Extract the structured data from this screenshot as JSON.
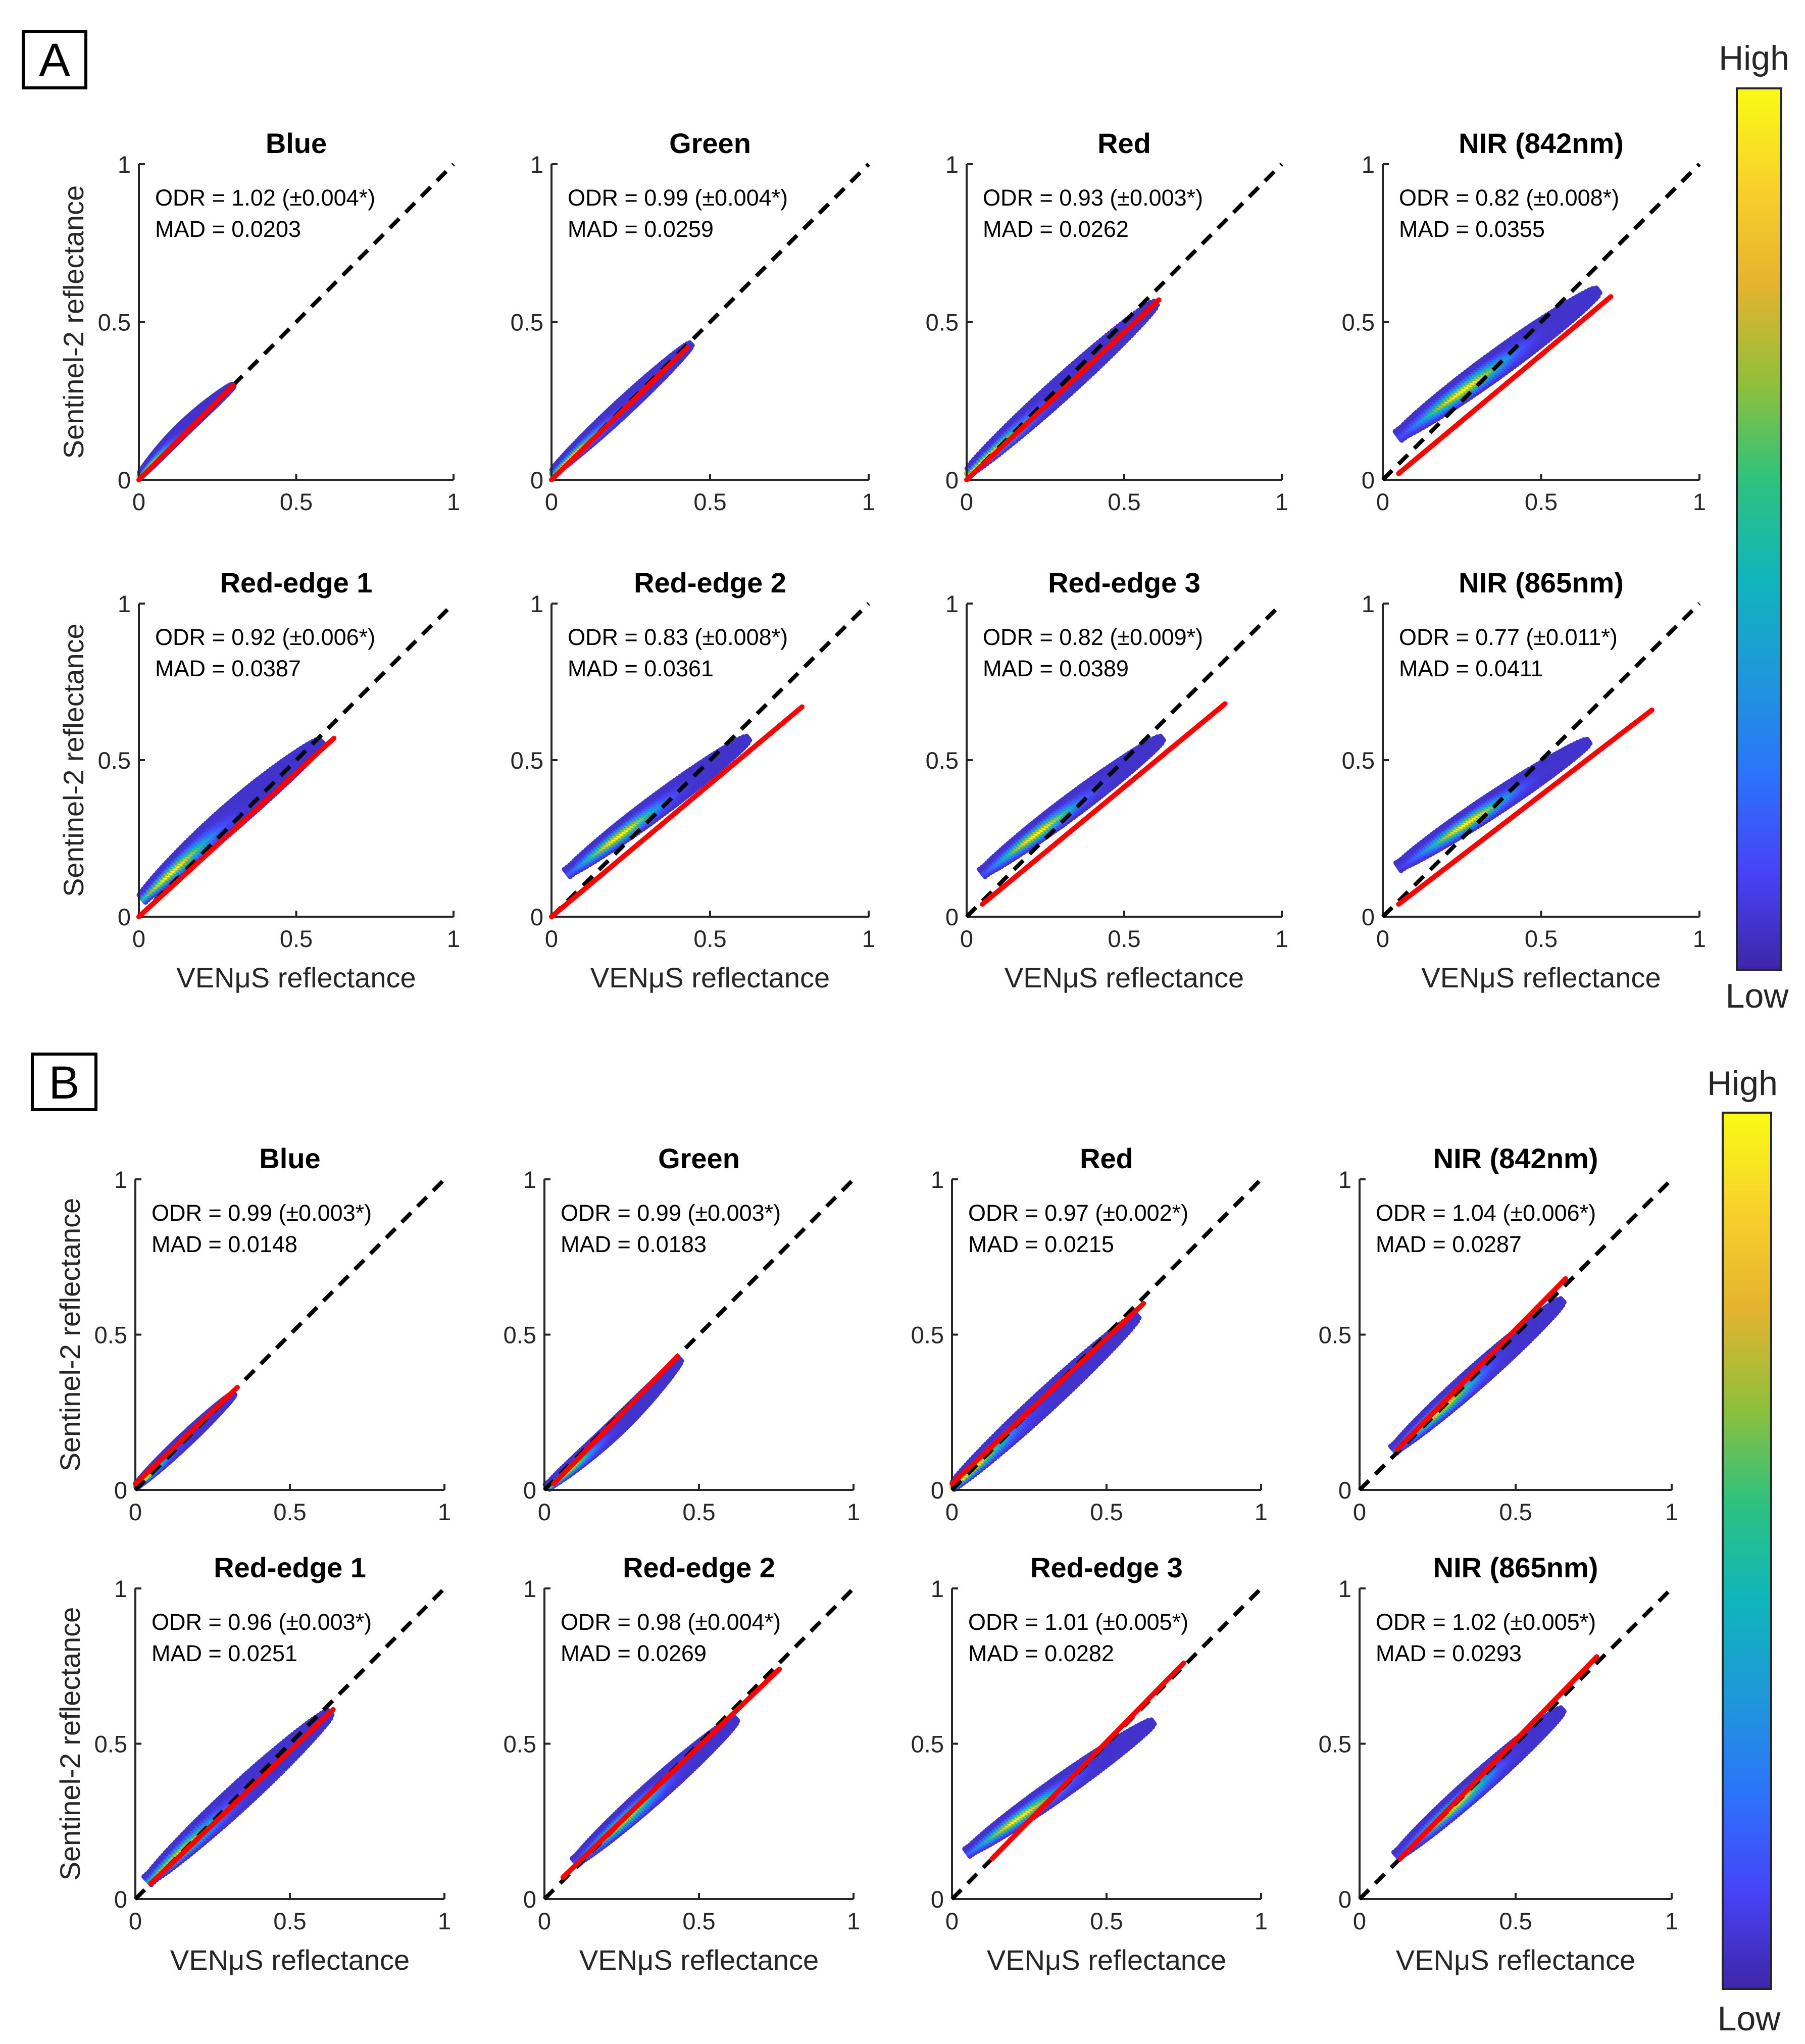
{
  "figure": {
    "xlabel": "VENμS reflectance",
    "ylabel": "Sentinel-2 reflectance",
    "ticks": [
      "0",
      "0.5",
      "1"
    ],
    "axis_range": [
      0,
      1
    ],
    "colormap": [
      "#3e26a8",
      "#4743f8",
      "#2c73fb",
      "#1e98d9",
      "#10b5bb",
      "#2ec27e",
      "#92bf3a",
      "#e5b32f",
      "#f8d12c",
      "#f9fb14"
    ],
    "line_colors": {
      "identity": "#000000",
      "fit": "#ff0000"
    }
  },
  "colorbars": [
    {
      "high_label": "High",
      "low_label": "Low"
    },
    {
      "high_label": "High",
      "low_label": "Low"
    }
  ],
  "panels": [
    {
      "letter": "A",
      "charts": [
        {
          "title": "Blue",
          "odr": "ODR = 1.02 (±0.004*)",
          "mad": "MAD = 0.0203"
        },
        {
          "title": "Green",
          "odr": "ODR = 0.99 (±0.004*)",
          "mad": "MAD = 0.0259"
        },
        {
          "title": "Red",
          "odr": "ODR = 0.93 (±0.003*)",
          "mad": "MAD = 0.0262"
        },
        {
          "title": "NIR (842nm)",
          "odr": "ODR = 0.82 (±0.008*)",
          "mad": "MAD = 0.0355"
        },
        {
          "title": "Red-edge 1",
          "odr": "ODR = 0.92 (±0.006*)",
          "mad": "MAD = 0.0387"
        },
        {
          "title": "Red-edge 2",
          "odr": "ODR = 0.83 (±0.008*)",
          "mad": "MAD = 0.0361"
        },
        {
          "title": "Red-edge 3",
          "odr": "ODR = 0.82 (±0.009*)",
          "mad": "MAD = 0.0389"
        },
        {
          "title": "NIR (865nm)",
          "odr": "ODR = 0.77 (±0.011*)",
          "mad": "MAD = 0.0411"
        }
      ]
    },
    {
      "letter": "B",
      "charts": [
        {
          "title": "Blue",
          "odr": "ODR = 0.99 (±0.003*)",
          "mad": "MAD = 0.0148"
        },
        {
          "title": "Green",
          "odr": "ODR = 0.99 (±0.003*)",
          "mad": "MAD = 0.0183"
        },
        {
          "title": "Red",
          "odr": "ODR = 0.97 (±0.002*)",
          "mad": "MAD = 0.0215"
        },
        {
          "title": "NIR (842nm)",
          "odr": "ODR = 1.04 (±0.006*)",
          "mad": "MAD = 0.0287"
        },
        {
          "title": "Red-edge 1",
          "odr": "ODR = 0.96 (±0.003*)",
          "mad": "MAD = 0.0251"
        },
        {
          "title": "Red-edge 2",
          "odr": "ODR = 0.98 (±0.004*)",
          "mad": "MAD = 0.0269"
        },
        {
          "title": "Red-edge 3",
          "odr": "ODR = 1.01 (±0.005*)",
          "mad": "MAD = 0.0282"
        },
        {
          "title": "NIR (865nm)",
          "odr": "ODR = 1.02 (±0.005*)",
          "mad": "MAD = 0.0293"
        }
      ]
    }
  ],
  "chart_data": [
    {
      "panel": "A",
      "type": "scatter",
      "title": "Blue",
      "xlabel": "",
      "ylabel": "Sentinel-2 reflectance",
      "xlim": [
        0,
        1
      ],
      "ylim": [
        0,
        1
      ],
      "identity_line": [
        [
          0,
          0
        ],
        [
          1,
          1
        ]
      ],
      "fit_line": [
        [
          0,
          0
        ],
        [
          0.3,
          0.3
        ]
      ],
      "cloud": {
        "x": [
          0,
          0.3
        ],
        "y": [
          0.01,
          0.3
        ],
        "peak": [
          0.03,
          0.04
        ],
        "spread": 0.035,
        "xoff": -0.01,
        "yoff": 0.005
      },
      "odr": 1.02,
      "odr_se": 0.004,
      "mad": 0.0203
    },
    {
      "panel": "A",
      "type": "scatter",
      "title": "Green",
      "xlabel": "",
      "ylabel": "",
      "xlim": [
        0,
        1
      ],
      "ylim": [
        0,
        1
      ],
      "identity_line": [
        [
          0,
          0
        ],
        [
          1,
          1
        ]
      ],
      "fit_line": [
        [
          0,
          0
        ],
        [
          0.43,
          0.42
        ]
      ],
      "cloud": {
        "x": [
          0,
          0.44
        ],
        "y": [
          0.02,
          0.43
        ],
        "peak": [
          0.07,
          0.08
        ],
        "spread": 0.045,
        "xoff": 0.0,
        "yoff": 0.0
      },
      "odr": 0.99,
      "odr_se": 0.004,
      "mad": 0.0259
    },
    {
      "panel": "A",
      "type": "scatter",
      "title": "Red",
      "xlabel": "",
      "ylabel": "",
      "xlim": [
        0,
        1
      ],
      "ylim": [
        0,
        1
      ],
      "identity_line": [
        [
          0,
          0
        ],
        [
          1,
          1
        ]
      ],
      "fit_line": [
        [
          0,
          0
        ],
        [
          0.61,
          0.57
        ]
      ],
      "cloud": {
        "x": [
          0,
          0.6
        ],
        "y": [
          0.02,
          0.56
        ],
        "peak": [
          0.07,
          0.08
        ],
        "spread": 0.06,
        "xoff": 0.0,
        "yoff": 0.0
      },
      "odr": 0.93,
      "odr_se": 0.003,
      "mad": 0.0262
    },
    {
      "panel": "A",
      "type": "scatter",
      "title": "NIR (842nm)",
      "xlabel": "",
      "ylabel": "",
      "xlim": [
        0,
        1
      ],
      "ylim": [
        0,
        1
      ],
      "identity_line": [
        [
          0,
          0
        ],
        [
          1,
          1
        ]
      ],
      "fit_line": [
        [
          0.05,
          0.02
        ],
        [
          0.72,
          0.58
        ]
      ],
      "cloud": {
        "x": [
          0.05,
          0.68
        ],
        "y": [
          0.14,
          0.6
        ],
        "peak": [
          0.27,
          0.27
        ],
        "spread": 0.07,
        "xoff": 0.0,
        "yoff": 0.0
      },
      "odr": 0.82,
      "odr_se": 0.008,
      "mad": 0.0355
    },
    {
      "panel": "A",
      "type": "scatter",
      "title": "Red-edge 1",
      "xlabel": "VENμS reflectance",
      "ylabel": "Sentinel-2 reflectance",
      "xlim": [
        0,
        1
      ],
      "ylim": [
        0,
        1
      ],
      "identity_line": [
        [
          0,
          0
        ],
        [
          1,
          1
        ]
      ],
      "fit_line": [
        [
          0,
          0
        ],
        [
          0.62,
          0.57
        ]
      ],
      "cloud": {
        "x": [
          0.01,
          0.58
        ],
        "y": [
          0.06,
          0.56
        ],
        "peak": [
          0.1,
          0.14
        ],
        "spread": 0.07,
        "xoff": 0.0,
        "yoff": 0.01
      },
      "odr": 0.92,
      "odr_se": 0.006,
      "mad": 0.0387
    },
    {
      "panel": "A",
      "type": "scatter",
      "title": "Red-edge 2",
      "xlabel": "VENμS reflectance",
      "ylabel": "",
      "xlim": [
        0,
        1
      ],
      "ylim": [
        0,
        1
      ],
      "identity_line": [
        [
          0,
          0
        ],
        [
          1,
          1
        ]
      ],
      "fit_line": [
        [
          0,
          0
        ],
        [
          0.79,
          0.67
        ]
      ],
      "cloud": {
        "x": [
          0.05,
          0.62
        ],
        "y": [
          0.14,
          0.57
        ],
        "peak": [
          0.22,
          0.25
        ],
        "spread": 0.06,
        "xoff": 0.0,
        "yoff": 0.0
      },
      "odr": 0.83,
      "odr_se": 0.008,
      "mad": 0.0361
    },
    {
      "panel": "A",
      "type": "scatter",
      "title": "Red-edge 3",
      "xlabel": "VENμS reflectance",
      "ylabel": "",
      "xlim": [
        0,
        1
      ],
      "ylim": [
        0,
        1
      ],
      "identity_line": [
        [
          0,
          0
        ],
        [
          1,
          1
        ]
      ],
      "fit_line": [
        [
          0.05,
          0.04
        ],
        [
          0.82,
          0.68
        ]
      ],
      "cloud": {
        "x": [
          0.05,
          0.62
        ],
        "y": [
          0.14,
          0.57
        ],
        "peak": [
          0.23,
          0.26
        ],
        "spread": 0.06,
        "xoff": 0.0,
        "yoff": 0.0
      },
      "odr": 0.82,
      "odr_se": 0.009,
      "mad": 0.0389
    },
    {
      "panel": "A",
      "type": "scatter",
      "title": "NIR (865nm)",
      "xlabel": "VENμS reflectance",
      "ylabel": "",
      "xlim": [
        0,
        1
      ],
      "ylim": [
        0,
        1
      ],
      "identity_line": [
        [
          0,
          0
        ],
        [
          1,
          1
        ]
      ],
      "fit_line": [
        [
          0.05,
          0.04
        ],
        [
          0.85,
          0.66
        ]
      ],
      "cloud": {
        "x": [
          0.05,
          0.65
        ],
        "y": [
          0.16,
          0.56
        ],
        "peak": [
          0.28,
          0.28
        ],
        "spread": 0.06,
        "xoff": 0.0,
        "yoff": 0.0
      },
      "odr": 0.77,
      "odr_se": 0.011,
      "mad": 0.0411
    },
    {
      "panel": "B",
      "type": "scatter",
      "title": "Blue",
      "xlabel": "",
      "ylabel": "Sentinel-2 reflectance",
      "xlim": [
        0,
        1
      ],
      "ylim": [
        0,
        1
      ],
      "identity_line": [
        [
          0,
          0
        ],
        [
          1,
          1
        ]
      ],
      "fit_line": [
        [
          0,
          0.02
        ],
        [
          0.33,
          0.33
        ]
      ],
      "cloud": {
        "x": [
          0,
          0.32
        ],
        "y": [
          0.01,
          0.31
        ],
        "peak": [
          0.03,
          0.04
        ],
        "spread": 0.035,
        "xoff": 0.0,
        "yoff": 0.0
      },
      "odr": 0.99,
      "odr_se": 0.003,
      "mad": 0.0148
    },
    {
      "panel": "B",
      "type": "scatter",
      "title": "Green",
      "xlabel": "",
      "ylabel": "",
      "xlim": [
        0,
        1
      ],
      "ylim": [
        0,
        1
      ],
      "identity_line": [
        [
          0,
          0
        ],
        [
          1,
          1
        ]
      ],
      "fit_line": [
        [
          0.03,
          0.02
        ],
        [
          0.43,
          0.43
        ]
      ],
      "cloud": {
        "x": [
          0.01,
          0.44
        ],
        "y": [
          0.01,
          0.42
        ],
        "peak": [
          0.05,
          0.05
        ],
        "spread": 0.045,
        "xoff": 0.01,
        "yoff": -0.01
      },
      "odr": 0.99,
      "odr_se": 0.003,
      "mad": 0.0183
    },
    {
      "panel": "B",
      "type": "scatter",
      "title": "Red",
      "xlabel": "",
      "ylabel": "",
      "xlim": [
        0,
        1
      ],
      "ylim": [
        0,
        1
      ],
      "identity_line": [
        [
          0,
          0
        ],
        [
          1,
          1
        ]
      ],
      "fit_line": [
        [
          0,
          0.02
        ],
        [
          0.62,
          0.6
        ]
      ],
      "cloud": {
        "x": [
          0,
          0.6
        ],
        "y": [
          0.01,
          0.56
        ],
        "peak": [
          0.05,
          0.06
        ],
        "spread": 0.06,
        "xoff": 0.0,
        "yoff": 0.0
      },
      "odr": 0.97,
      "odr_se": 0.002,
      "mad": 0.0215
    },
    {
      "panel": "B",
      "type": "scatter",
      "title": "NIR (842nm)",
      "xlabel": "",
      "ylabel": "",
      "xlim": [
        0,
        1
      ],
      "ylim": [
        0,
        1
      ],
      "identity_line": [
        [
          0,
          0
        ],
        [
          1,
          1
        ]
      ],
      "fit_line": [
        [
          0.12,
          0.13
        ],
        [
          0.66,
          0.68
        ]
      ],
      "cloud": {
        "x": [
          0.11,
          0.65
        ],
        "y": [
          0.13,
          0.61
        ],
        "peak": [
          0.25,
          0.26
        ],
        "spread": 0.06,
        "xoff": 0.0,
        "yoff": 0.0
      },
      "odr": 1.04,
      "odr_se": 0.006,
      "mad": 0.0287
    },
    {
      "panel": "B",
      "type": "scatter",
      "title": "Red-edge 1",
      "xlabel": "VENμS reflectance",
      "ylabel": "Sentinel-2 reflectance",
      "xlim": [
        0,
        1
      ],
      "ylim": [
        0,
        1
      ],
      "identity_line": [
        [
          0,
          0
        ],
        [
          1,
          1
        ]
      ],
      "fit_line": [
        [
          0.05,
          0.05
        ],
        [
          0.64,
          0.61
        ]
      ],
      "cloud": {
        "x": [
          0.04,
          0.63
        ],
        "y": [
          0.06,
          0.6
        ],
        "peak": [
          0.15,
          0.15
        ],
        "spread": 0.07,
        "xoff": 0.0,
        "yoff": 0.0
      },
      "odr": 0.96,
      "odr_se": 0.003,
      "mad": 0.0251
    },
    {
      "panel": "B",
      "type": "scatter",
      "title": "Red-edge 2",
      "xlabel": "VENμS reflectance",
      "ylabel": "",
      "xlim": [
        0,
        1
      ],
      "ylim": [
        0,
        1
      ],
      "identity_line": [
        [
          0,
          0
        ],
        [
          1,
          1
        ]
      ],
      "fit_line": [
        [
          0.06,
          0.07
        ],
        [
          0.76,
          0.74
        ]
      ],
      "cloud": {
        "x": [
          0.1,
          0.62
        ],
        "y": [
          0.12,
          0.58
        ],
        "peak": [
          0.25,
          0.25
        ],
        "spread": 0.06,
        "xoff": 0.0,
        "yoff": 0.0
      },
      "odr": 0.98,
      "odr_se": 0.004,
      "mad": 0.0269
    },
    {
      "panel": "B",
      "type": "scatter",
      "title": "Red-edge 3",
      "xlabel": "VENμS reflectance",
      "ylabel": "",
      "xlim": [
        0,
        1
      ],
      "ylim": [
        0,
        1
      ],
      "identity_line": [
        [
          0,
          0
        ],
        [
          1,
          1
        ]
      ],
      "fit_line": [
        [
          0.13,
          0.13
        ],
        [
          0.75,
          0.76
        ]
      ],
      "cloud": {
        "x": [
          0.05,
          0.65
        ],
        "y": [
          0.15,
          0.57
        ],
        "peak": [
          0.22,
          0.26
        ],
        "spread": 0.06,
        "xoff": 0.0,
        "yoff": 0.0
      },
      "odr": 1.01,
      "odr_se": 0.005,
      "mad": 0.0282
    },
    {
      "panel": "B",
      "type": "scatter",
      "title": "NIR (865nm)",
      "xlabel": "VENμS reflectance",
      "ylabel": "",
      "xlim": [
        0,
        1
      ],
      "ylim": [
        0,
        1
      ],
      "identity_line": [
        [
          0,
          0
        ],
        [
          1,
          1
        ]
      ],
      "fit_line": [
        [
          0.13,
          0.13
        ],
        [
          0.76,
          0.78
        ]
      ],
      "cloud": {
        "x": [
          0.12,
          0.65
        ],
        "y": [
          0.14,
          0.61
        ],
        "peak": [
          0.29,
          0.3
        ],
        "spread": 0.06,
        "xoff": 0.0,
        "yoff": 0.0
      },
      "odr": 1.02,
      "odr_se": 0.005,
      "mad": 0.0293
    }
  ]
}
